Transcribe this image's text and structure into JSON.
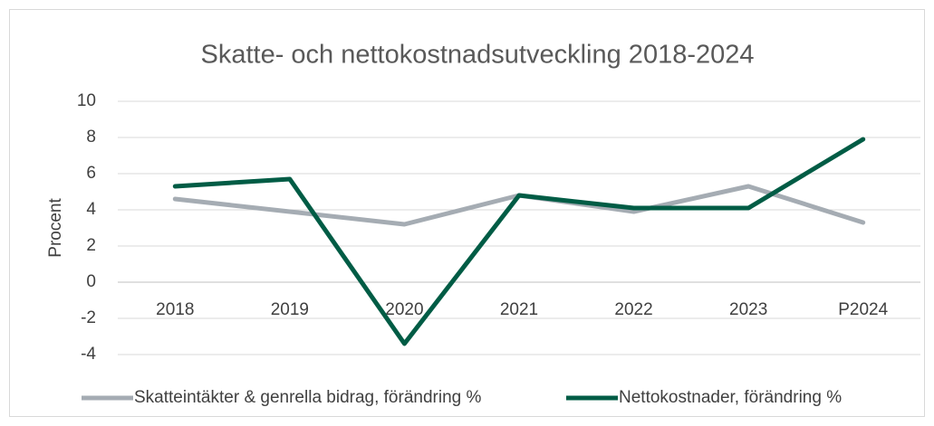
{
  "chart_data": {
    "type": "line",
    "title": "Skatte- och nettokostnadsutveckling 2018-2024",
    "y_label": "Procent",
    "categories": [
      "2018",
      "2019",
      "2020",
      "2021",
      "2022",
      "2023",
      "P2024"
    ],
    "series": [
      {
        "name": "Skatteintäkter & genrella bidrag, förändring %",
        "color": "#a5acb3",
        "values": [
          4.6,
          3.9,
          3.2,
          4.8,
          3.9,
          5.3,
          3.3
        ]
      },
      {
        "name": "Nettokostnader, förändring %",
        "color": "#005c45",
        "values": [
          5.3,
          5.7,
          -3.4,
          4.8,
          4.1,
          4.1,
          7.9
        ]
      }
    ],
    "ylim": [
      -4,
      10
    ],
    "yticks": [
      -4,
      -2,
      0,
      2,
      4,
      6,
      8,
      10
    ],
    "grid": true,
    "legend": "bottom"
  }
}
